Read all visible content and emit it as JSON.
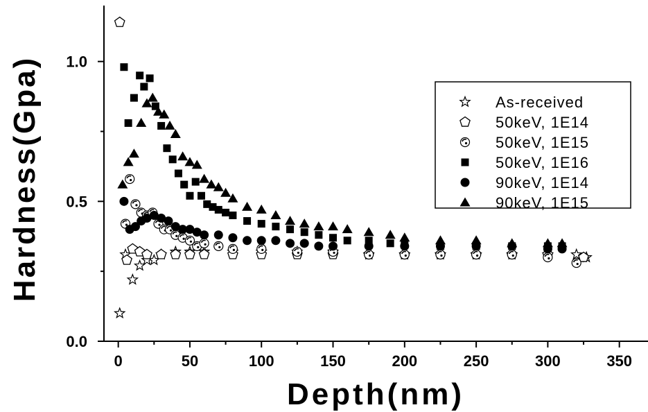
{
  "chart_data": {
    "type": "scatter",
    "title": "",
    "xlabel": "Depth(nm)",
    "ylabel": "Hardness(Gpa)",
    "xlim": [
      -10,
      370
    ],
    "ylim": [
      0.0,
      1.2
    ],
    "x_ticks": [
      0,
      50,
      100,
      150,
      200,
      250,
      300,
      350
    ],
    "x_tick_labels": [
      "0",
      "50",
      "100",
      "150",
      "200",
      "250",
      "300",
      "350"
    ],
    "y_ticks": [
      0.0,
      0.5,
      1.0
    ],
    "y_tick_labels": [
      "0.0",
      "0.5",
      "1.0"
    ],
    "grid": false,
    "legend_position": "top-right",
    "series": [
      {
        "name": "As-received",
        "marker": "star",
        "x": [
          1,
          5,
          10,
          15,
          20,
          25,
          30,
          40,
          50,
          60,
          80,
          100,
          125,
          150,
          175,
          200,
          225,
          250,
          275,
          300,
          320,
          327
        ],
        "y": [
          0.1,
          0.31,
          0.22,
          0.27,
          0.29,
          0.29,
          0.31,
          0.32,
          0.32,
          0.32,
          0.32,
          0.32,
          0.32,
          0.32,
          0.31,
          0.31,
          0.31,
          0.31,
          0.31,
          0.31,
          0.31,
          0.3
        ]
      },
      {
        "name": "50keV, 1E14",
        "marker": "pentagon",
        "x": [
          1,
          6,
          10,
          15,
          20,
          30,
          40,
          50,
          60,
          80,
          100,
          125,
          150,
          175,
          200,
          225,
          250,
          275,
          300,
          325
        ],
        "y": [
          1.14,
          0.29,
          0.33,
          0.32,
          0.31,
          0.31,
          0.31,
          0.31,
          0.31,
          0.31,
          0.31,
          0.31,
          0.31,
          0.31,
          0.31,
          0.31,
          0.31,
          0.31,
          0.31,
          0.3
        ]
      },
      {
        "name": "50keV, 1E15",
        "marker": "shaded-circle",
        "x": [
          5,
          8,
          12,
          16,
          20,
          24,
          28,
          32,
          36,
          40,
          45,
          50,
          55,
          60,
          70,
          80,
          100,
          125,
          150,
          175,
          200,
          225,
          250,
          275,
          300,
          320
        ],
        "y": [
          0.42,
          0.58,
          0.49,
          0.46,
          0.45,
          0.46,
          0.42,
          0.4,
          0.4,
          0.38,
          0.37,
          0.36,
          0.34,
          0.35,
          0.34,
          0.33,
          0.33,
          0.32,
          0.32,
          0.31,
          0.31,
          0.31,
          0.31,
          0.31,
          0.3,
          0.28
        ]
      },
      {
        "name": "50keV, 1E16",
        "marker": "square",
        "x": [
          4,
          7,
          11,
          15,
          18,
          22,
          26,
          30,
          34,
          38,
          42,
          46,
          50,
          54,
          58,
          62,
          66,
          70,
          75,
          80,
          90,
          100,
          110,
          120,
          130,
          140,
          150,
          160,
          175,
          190,
          200,
          225,
          250,
          275,
          300,
          310
        ],
        "y": [
          0.98,
          0.78,
          0.87,
          0.95,
          0.91,
          0.94,
          0.84,
          0.77,
          0.69,
          0.65,
          0.6,
          0.56,
          0.52,
          0.57,
          0.52,
          0.49,
          0.48,
          0.47,
          0.46,
          0.45,
          0.43,
          0.42,
          0.41,
          0.4,
          0.39,
          0.38,
          0.37,
          0.36,
          0.36,
          0.35,
          0.35,
          0.34,
          0.34,
          0.34,
          0.34,
          0.34
        ]
      },
      {
        "name": "90keV, 1E14",
        "marker": "circle",
        "x": [
          4,
          8,
          12,
          16,
          20,
          25,
          30,
          35,
          40,
          45,
          50,
          55,
          60,
          70,
          80,
          90,
          100,
          110,
          120,
          130,
          140,
          150,
          175,
          200,
          225,
          250,
          275,
          300,
          310
        ],
        "y": [
          0.5,
          0.4,
          0.41,
          0.43,
          0.44,
          0.45,
          0.44,
          0.43,
          0.41,
          0.4,
          0.4,
          0.39,
          0.38,
          0.38,
          0.37,
          0.36,
          0.36,
          0.36,
          0.35,
          0.35,
          0.34,
          0.34,
          0.34,
          0.34,
          0.34,
          0.34,
          0.34,
          0.33,
          0.33
        ]
      },
      {
        "name": "90keV, 1E15",
        "marker": "triangle",
        "x": [
          3,
          7,
          11,
          16,
          20,
          24,
          28,
          32,
          36,
          40,
          45,
          50,
          55,
          60,
          65,
          70,
          75,
          80,
          90,
          100,
          110,
          120,
          130,
          140,
          150,
          160,
          175,
          190,
          200,
          225,
          250,
          275,
          300,
          310
        ],
        "y": [
          0.56,
          0.64,
          0.67,
          0.78,
          0.85,
          0.87,
          0.82,
          0.81,
          0.77,
          0.74,
          0.66,
          0.64,
          0.63,
          0.58,
          0.56,
          0.55,
          0.53,
          0.51,
          0.48,
          0.47,
          0.45,
          0.43,
          0.42,
          0.41,
          0.41,
          0.4,
          0.39,
          0.38,
          0.37,
          0.36,
          0.36,
          0.35,
          0.35,
          0.35
        ]
      }
    ]
  }
}
